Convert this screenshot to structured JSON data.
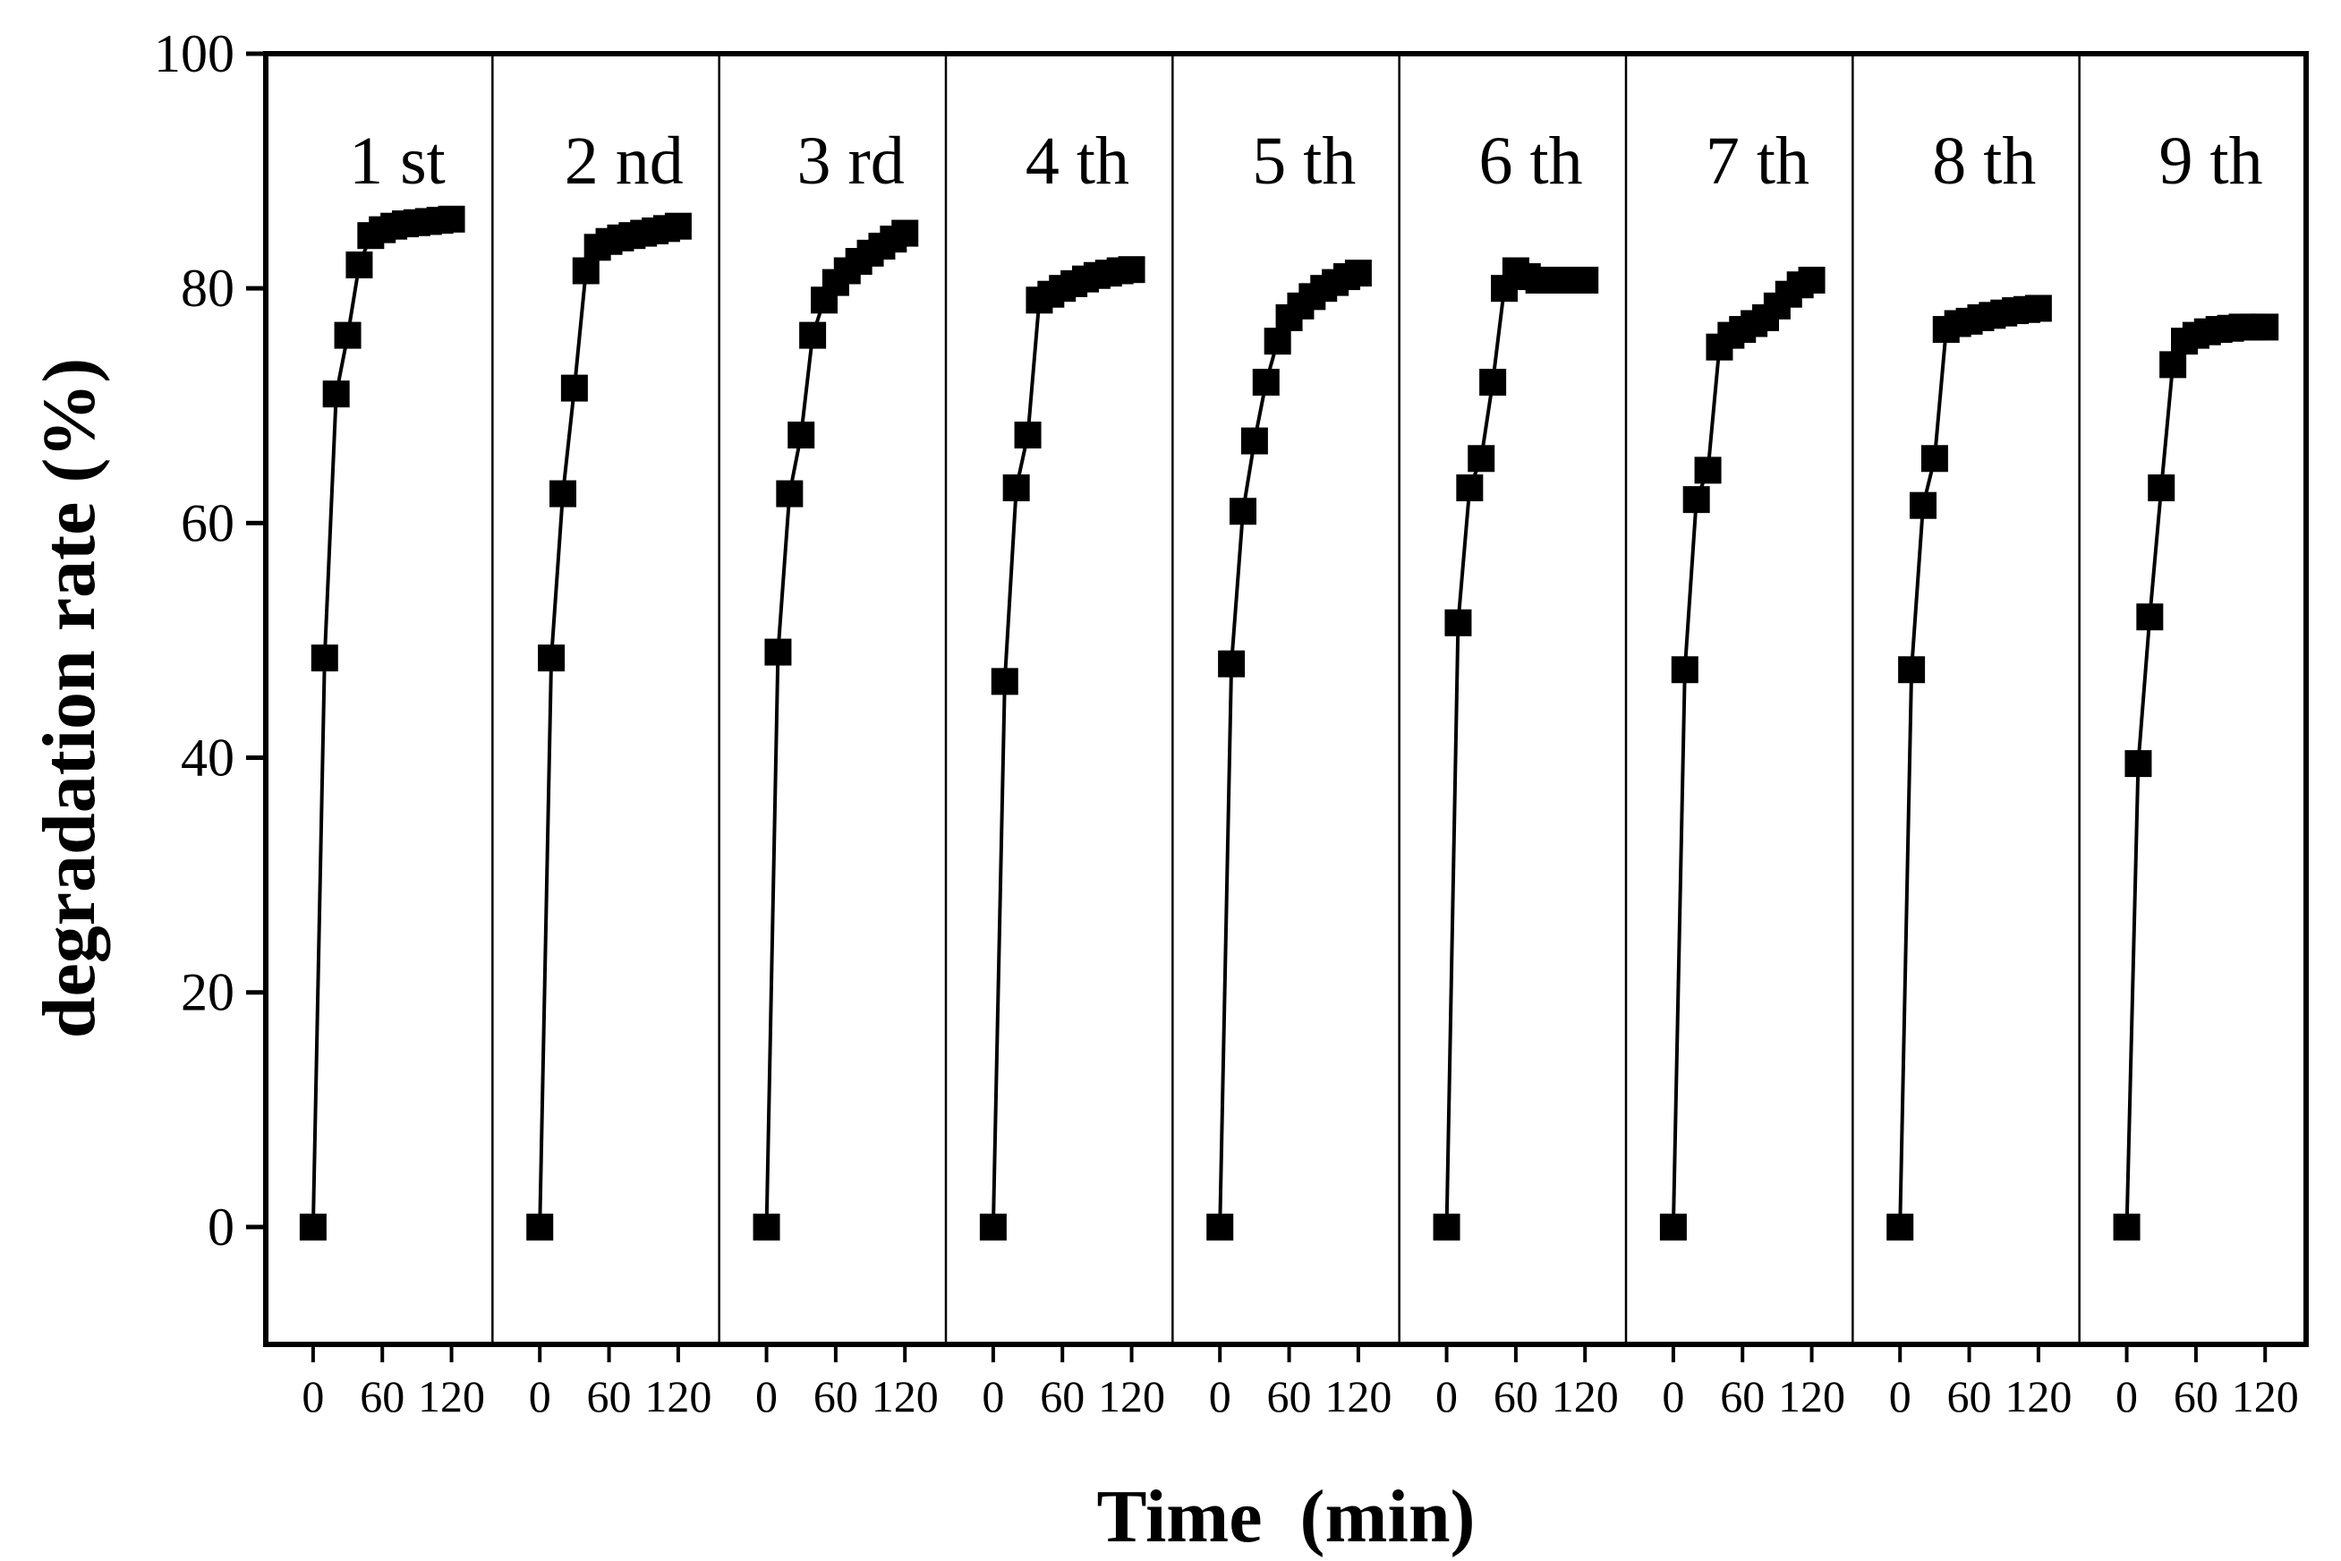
{
  "chart_data": {
    "type": "scatter",
    "xlabel": "Time  (min)",
    "ylabel": "degradation rate (%)",
    "ylim": [
      -10,
      100
    ],
    "yticks": [
      0,
      20,
      40,
      60,
      80,
      100
    ],
    "panel_xlim": [
      -10,
      140
    ],
    "xtick_values": [
      0,
      60,
      120
    ],
    "xtick_labels": [
      "0",
      "60",
      "120"
    ],
    "marker": "square",
    "line": true,
    "color": "#000000",
    "series": [
      {
        "label": "1 st",
        "x": [
          0,
          10,
          20,
          30,
          40,
          50,
          60,
          70,
          80,
          90,
          100,
          110,
          120
        ],
        "y": [
          0,
          48.5,
          71,
          76,
          82,
          84.5,
          85,
          85.3,
          85.5,
          85.6,
          85.7,
          85.8,
          85.9
        ]
      },
      {
        "label": "2 nd",
        "x": [
          0,
          10,
          20,
          30,
          40,
          50,
          60,
          70,
          80,
          90,
          100,
          110,
          120
        ],
        "y": [
          0,
          48.5,
          62.5,
          71.5,
          81.5,
          83.5,
          84,
          84.3,
          84.5,
          84.7,
          84.9,
          85.1,
          85.3
        ]
      },
      {
        "label": "3 rd",
        "x": [
          0,
          10,
          20,
          30,
          40,
          50,
          60,
          70,
          80,
          90,
          100,
          110,
          120
        ],
        "y": [
          0,
          49,
          62.5,
          67.5,
          76,
          79,
          80.5,
          81.5,
          82.3,
          83,
          83.6,
          84.2,
          84.7
        ]
      },
      {
        "label": "4 th",
        "x": [
          0,
          10,
          20,
          30,
          40,
          50,
          60,
          70,
          80,
          90,
          100,
          110,
          120
        ],
        "y": [
          0,
          46.5,
          63,
          67.5,
          79,
          79.5,
          80,
          80.4,
          80.8,
          81.1,
          81.3,
          81.5,
          81.6
        ]
      },
      {
        "label": "5 th",
        "x": [
          0,
          10,
          20,
          30,
          40,
          50,
          60,
          70,
          80,
          90,
          100,
          110,
          120
        ],
        "y": [
          0,
          48,
          61,
          67,
          72,
          75.5,
          77.5,
          78.5,
          79.3,
          80,
          80.5,
          81,
          81.3
        ]
      },
      {
        "label": "6 th",
        "x": [
          0,
          10,
          20,
          30,
          40,
          50,
          60,
          70,
          80,
          90,
          100,
          110,
          120
        ],
        "y": [
          0,
          51.5,
          63,
          65.5,
          72,
          80,
          81.5,
          81,
          80.7,
          80.7,
          80.7,
          80.7,
          80.7
        ]
      },
      {
        "label": "7 th",
        "x": [
          0,
          10,
          20,
          30,
          40,
          50,
          60,
          70,
          80,
          90,
          100,
          110,
          120
        ],
        "y": [
          0,
          47.5,
          62,
          64.5,
          75,
          76,
          76.5,
          77,
          77.5,
          78.5,
          79.5,
          80.3,
          80.7
        ]
      },
      {
        "label": "8 th",
        "x": [
          0,
          10,
          20,
          30,
          40,
          50,
          60,
          70,
          80,
          90,
          100,
          110,
          120
        ],
        "y": [
          0,
          47.5,
          61.5,
          65.5,
          76.5,
          77,
          77.2,
          77.5,
          77.7,
          77.9,
          78.1,
          78.2,
          78.3
        ]
      },
      {
        "label": "9 th",
        "x": [
          0,
          10,
          20,
          30,
          40,
          50,
          60,
          70,
          80,
          90,
          100,
          110,
          120
        ],
        "y": [
          0,
          39.5,
          52,
          63,
          73.5,
          75.5,
          76,
          76.3,
          76.5,
          76.6,
          76.7,
          76.7,
          76.7
        ]
      }
    ]
  }
}
